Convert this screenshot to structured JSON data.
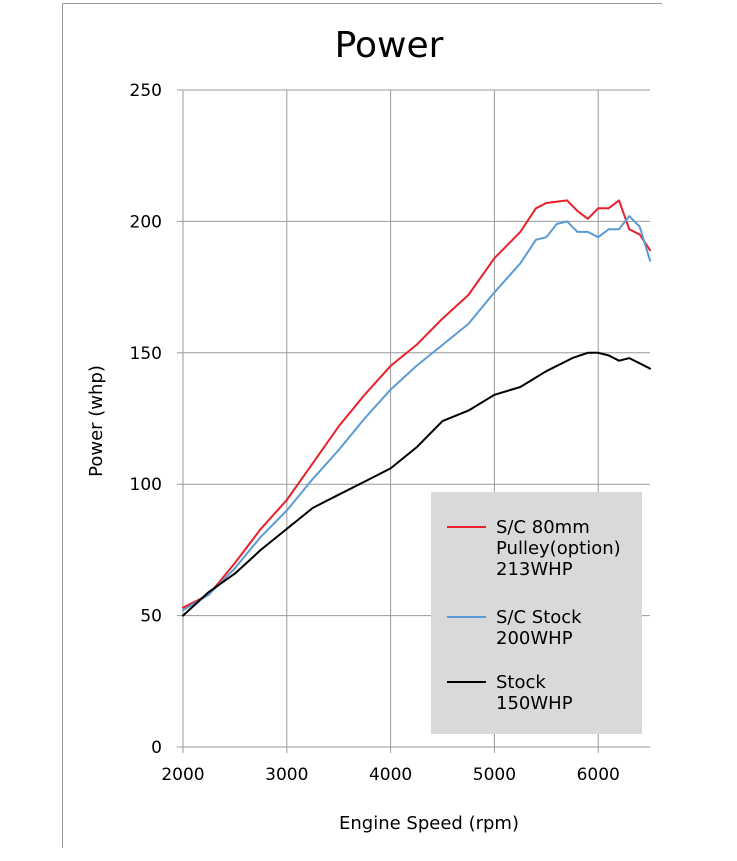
{
  "chart_data": {
    "type": "line",
    "title": "Power",
    "xlabel": "Engine Speed (rpm)",
    "ylabel": "Power (whp)",
    "xlim": [
      2000,
      6500
    ],
    "ylim": [
      0,
      250
    ],
    "xticks": [
      2000,
      3000,
      4000,
      5000,
      6000
    ],
    "yticks": [
      0,
      50,
      100,
      150,
      200,
      250
    ],
    "grid": true,
    "legend_position": "bottom-right",
    "series": [
      {
        "name": "S/C 80mm Pulley(option) 213WHP",
        "legend_lines": [
          "S/C 80mm",
          "Pulley(option)",
          "213WHP"
        ],
        "color": "#e8202a",
        "x": [
          2000,
          2250,
          2500,
          2750,
          3000,
          3250,
          3500,
          3750,
          4000,
          4250,
          4500,
          4750,
          5000,
          5250,
          5400,
          5500,
          5700,
          5800,
          5900,
          6000,
          6100,
          6200,
          6300,
          6400,
          6500
        ],
        "y": [
          53,
          58,
          70,
          83,
          94,
          108,
          122,
          134,
          145,
          153,
          163,
          172,
          186,
          196,
          205,
          207,
          208,
          204,
          201,
          205,
          205,
          208,
          197,
          195,
          189
        ]
      },
      {
        "name": "S/C Stock 200WHP",
        "legend_lines": [
          "S/C Stock",
          "200WHP"
        ],
        "color": "#5b9bd5",
        "x": [
          2000,
          2250,
          2500,
          2750,
          3000,
          3250,
          3500,
          3750,
          4000,
          4250,
          4500,
          4750,
          5000,
          5250,
          5400,
          5500,
          5600,
          5700,
          5800,
          5900,
          6000,
          6100,
          6200,
          6300,
          6400,
          6500
        ],
        "y": [
          52,
          58,
          68,
          80,
          90,
          102,
          113,
          125,
          136,
          145,
          153,
          161,
          173,
          184,
          193,
          194,
          199,
          200,
          196,
          196,
          194,
          197,
          197,
          202,
          198,
          185
        ]
      },
      {
        "name": "Stock 150WHP",
        "legend_lines": [
          "Stock",
          "150WHP"
        ],
        "color": "#000000",
        "x": [
          2000,
          2250,
          2500,
          2750,
          3000,
          3250,
          3500,
          3750,
          4000,
          4250,
          4500,
          4750,
          5000,
          5250,
          5500,
          5750,
          5900,
          6000,
          6100,
          6200,
          6300,
          6400,
          6500
        ],
        "y": [
          50,
          59,
          66,
          75,
          83,
          91,
          96,
          101,
          106,
          114,
          124,
          128,
          134,
          137,
          143,
          148,
          150,
          150,
          149,
          147,
          148,
          146,
          144
        ]
      }
    ]
  }
}
